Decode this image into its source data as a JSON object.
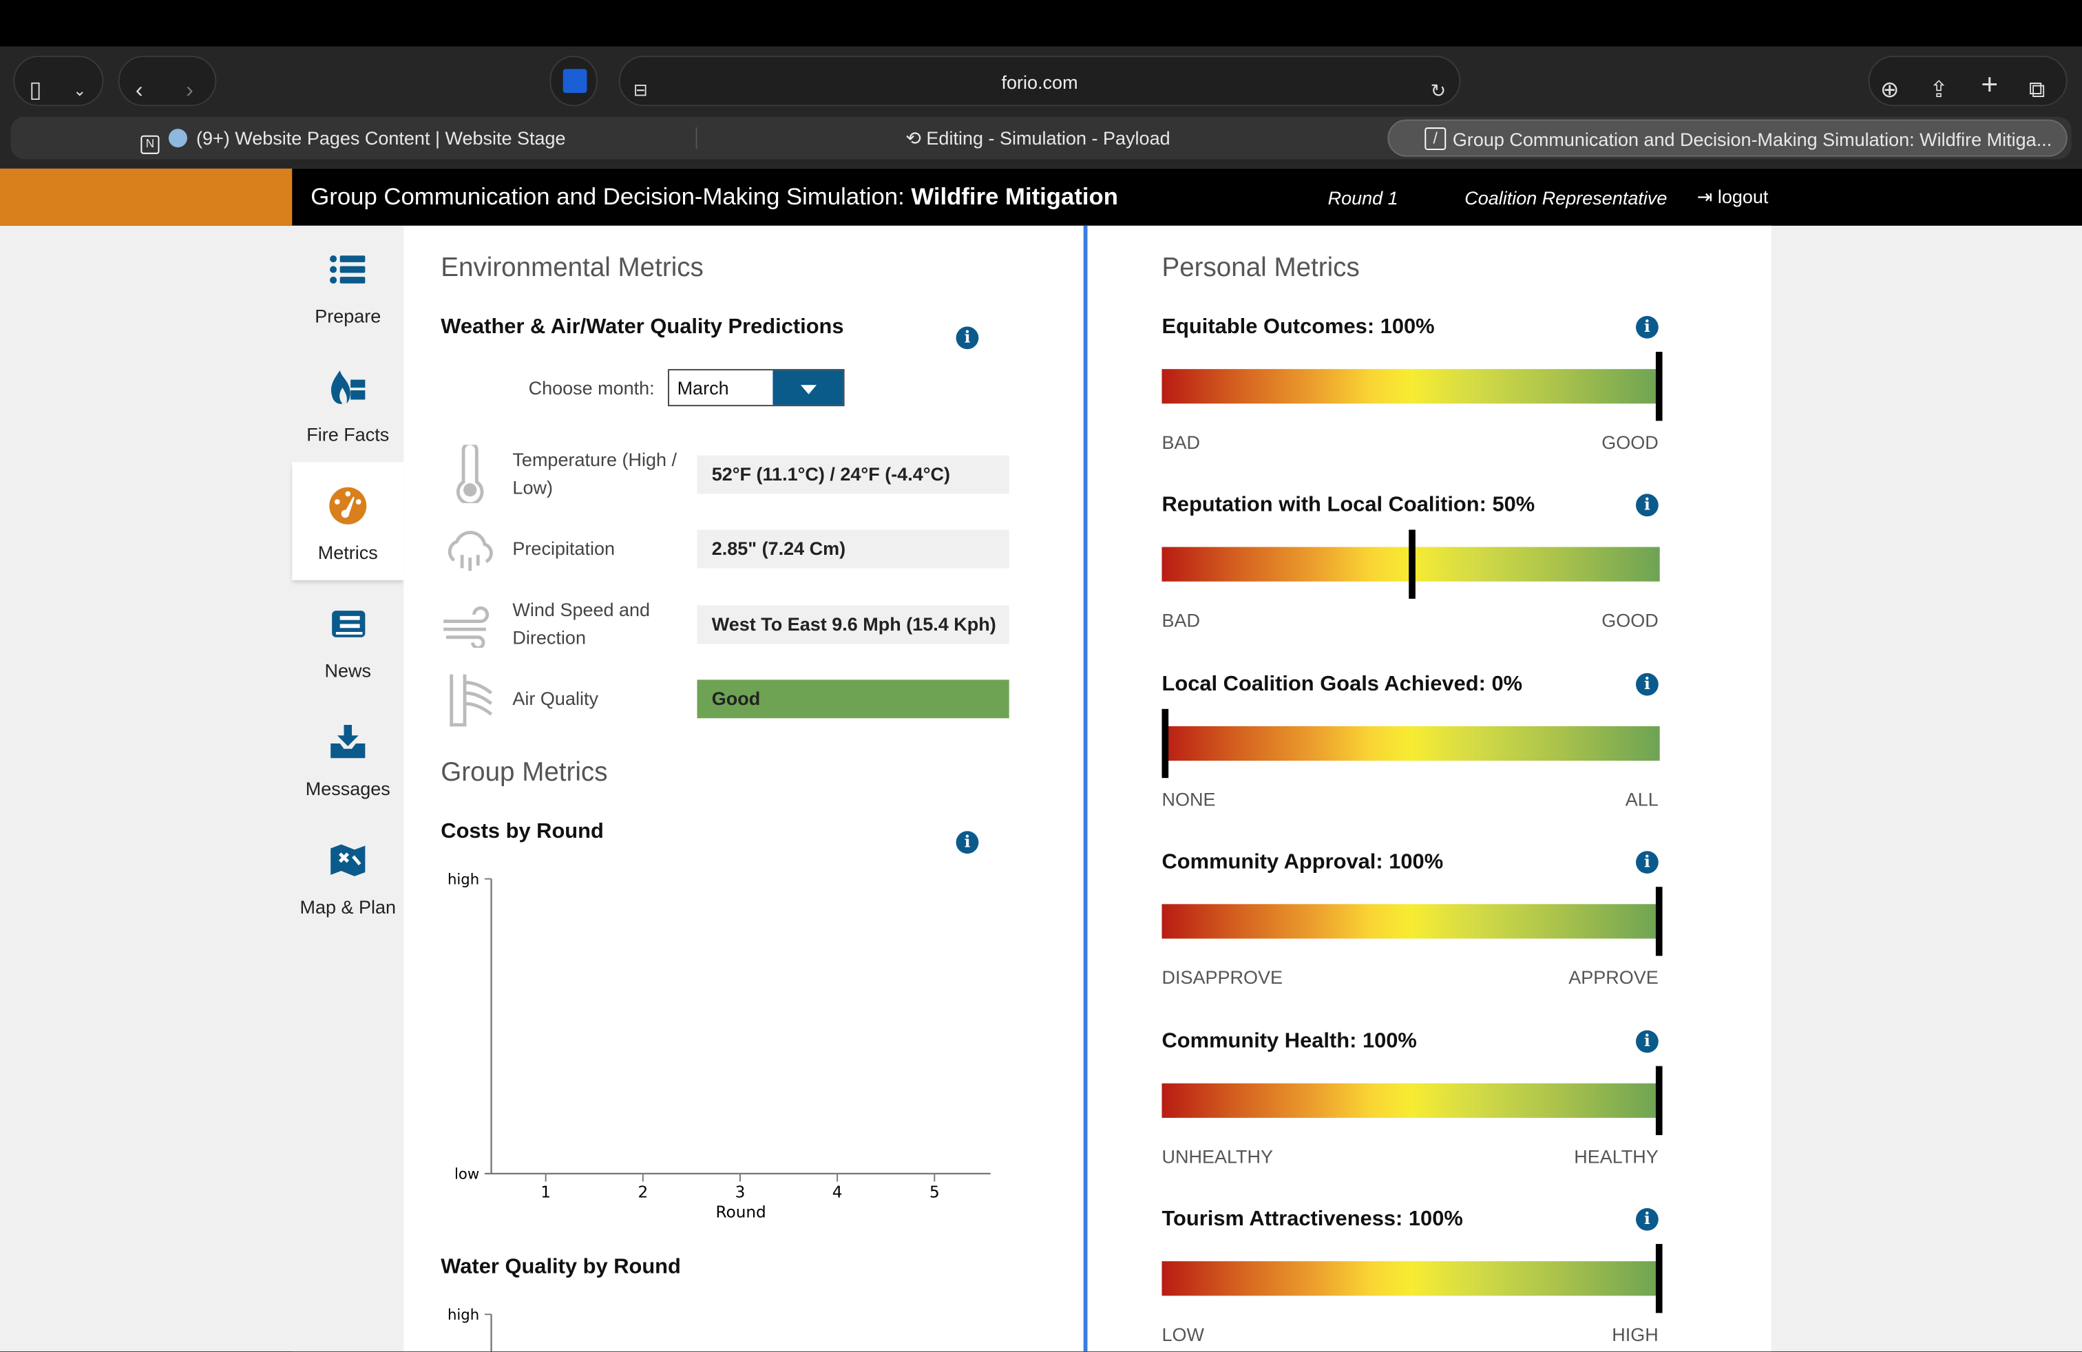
{
  "browser": {
    "url": "forio.com",
    "tabs": [
      {
        "label": "(9+) Website Pages Content | Website Stage"
      },
      {
        "label": "Editing - Simulation - Payload"
      },
      {
        "label": "Group Communication and Decision-Making Simulation: Wildfire Mitiga..."
      }
    ]
  },
  "header": {
    "title_prefix": "Group Communication and Decision-Making Simulation: ",
    "title_bold": "Wildfire Mitigation",
    "round": "Round 1",
    "role": "Coalition Representative",
    "logout": "logout"
  },
  "sidebar": {
    "items": [
      {
        "label": "Prepare",
        "icon": "list-icon"
      },
      {
        "label": "Fire Facts",
        "icon": "fire-facts-icon"
      },
      {
        "label": "Metrics",
        "icon": "gauge-icon",
        "active": true
      },
      {
        "label": "News",
        "icon": "newspaper-icon"
      },
      {
        "label": "Messages",
        "icon": "inbox-icon"
      },
      {
        "label": "Map & Plan",
        "icon": "map-icon"
      }
    ]
  },
  "environmental": {
    "heading": "Environmental Metrics",
    "subheading": "Weather & Air/Water Quality Predictions",
    "month_label": "Choose month:",
    "month_value": "March",
    "rows": [
      {
        "label": "Temperature (High / Low)",
        "value": "52°F (11.1°C) / 24°F (-4.4°C)",
        "icon": "thermometer-icon"
      },
      {
        "label": "Precipitation",
        "value": "2.85\" (7.24 Cm)",
        "icon": "rain-cloud-icon"
      },
      {
        "label": "Wind Speed and Direction",
        "value": "West To East 9.6 Mph (15.4 Kph)",
        "icon": "wind-icon"
      },
      {
        "label": "Air Quality",
        "value": "Good",
        "icon": "air-quality-icon",
        "color": "#6ea354"
      }
    ]
  },
  "group": {
    "heading": "Group Metrics",
    "charts_titles": [
      "Costs by Round",
      "Water Quality by Round"
    ]
  },
  "chart_data": [
    {
      "type": "line",
      "title": "Costs by Round",
      "xlabel": "Round",
      "x_ticks": [
        "1",
        "2",
        "3",
        "4",
        "5"
      ],
      "y_ticks": [
        "low",
        "high"
      ],
      "series": [],
      "grid": false
    },
    {
      "type": "line",
      "title": "Water Quality by Round",
      "y_ticks": [
        "high"
      ],
      "series": [],
      "grid": false
    }
  ],
  "personal": {
    "heading": "Personal Metrics",
    "metrics": [
      {
        "title": "Equitable Outcomes: 100%",
        "value": 100,
        "low": "BAD",
        "high": "GOOD"
      },
      {
        "title": "Reputation with Local Coalition: 50%",
        "value": 50,
        "low": "BAD",
        "high": "GOOD"
      },
      {
        "title": "Local Coalition Goals Achieved: 0%",
        "value": 0,
        "low": "NONE",
        "high": "ALL"
      },
      {
        "title": "Community Approval: 100%",
        "value": 100,
        "low": "DISAPPROVE",
        "high": "APPROVE"
      },
      {
        "title": "Community Health: 100%",
        "value": 100,
        "low": "UNHEALTHY",
        "high": "HEALTHY"
      },
      {
        "title": "Tourism Attractiveness: 100%",
        "value": 100,
        "low": "LOW",
        "high": "HIGH"
      }
    ]
  },
  "colors": {
    "brand_orange": "#d97f1c",
    "accent_blue": "#0a5a8a",
    "divider_blue": "#3a7de0"
  }
}
